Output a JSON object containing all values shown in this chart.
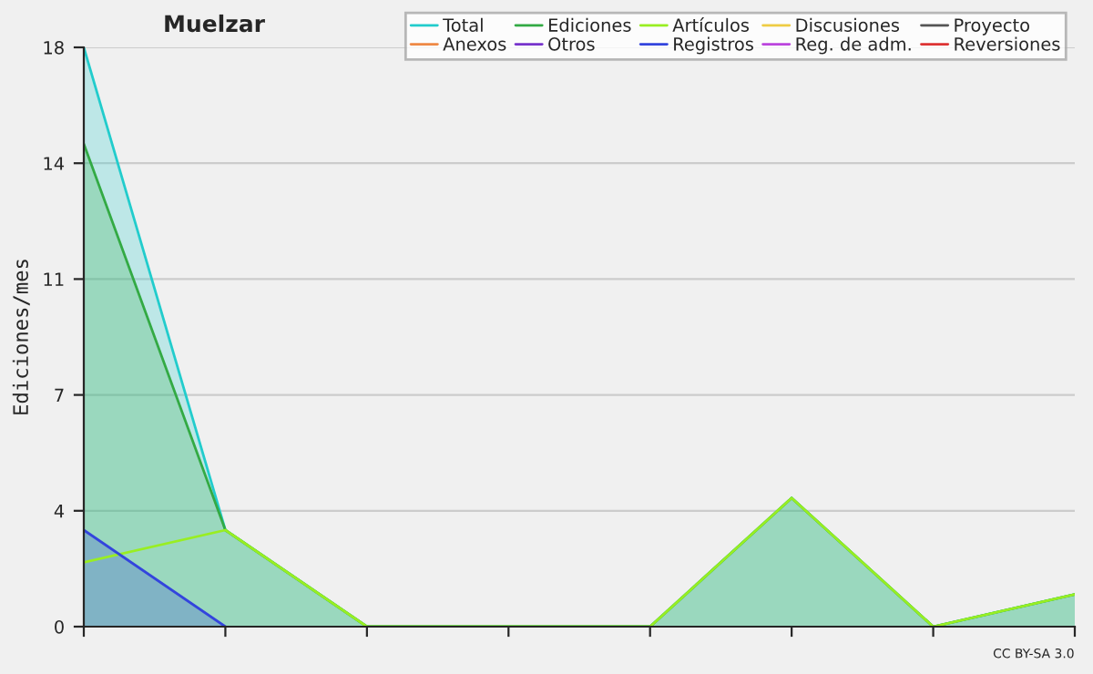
{
  "chart_data": {
    "type": "area",
    "title": "Muelzar",
    "ylabel": "Ediciones/mes",
    "categories": [
      null,
      null,
      null,
      null,
      null,
      null,
      null,
      null
    ],
    "series": [
      {
        "name": "Total",
        "color": "#22cccc",
        "values": [
          18,
          3,
          0,
          0,
          0,
          4,
          0,
          1
        ]
      },
      {
        "name": "Ediciones",
        "color": "#33aa44",
        "values": [
          15,
          3,
          0,
          0,
          0,
          4,
          0,
          1
        ]
      },
      {
        "name": "Artículos",
        "color": "#99ee22",
        "type": "line",
        "values": [
          2,
          3,
          0,
          0,
          0,
          4,
          0,
          1
        ]
      },
      {
        "name": "Discusiones",
        "color": "#eecc44",
        "type": "line",
        "values": [
          null,
          null,
          null,
          null,
          null,
          null,
          null,
          null
        ]
      },
      {
        "name": "Proyecto",
        "color": "#555555",
        "type": "line",
        "values": [
          null,
          null,
          null,
          null,
          null,
          null,
          null,
          null
        ]
      },
      {
        "name": "Anexos",
        "color": "#ee8844",
        "type": "line",
        "values": [
          null,
          null,
          null,
          null,
          null,
          null,
          null,
          null
        ]
      },
      {
        "name": "Otros",
        "color": "#7733cc",
        "type": "line",
        "values": [
          null,
          null,
          null,
          null,
          null,
          null,
          null,
          null
        ]
      },
      {
        "name": "Registros",
        "color": "#3344dd",
        "values": [
          3,
          0,
          null,
          null,
          null,
          null,
          null,
          null
        ]
      },
      {
        "name": "Reg. de adm.",
        "color": "#bb44dd",
        "type": "line",
        "values": [
          null,
          null,
          null,
          null,
          null,
          null,
          null,
          null
        ]
      },
      {
        "name": "Reversiones",
        "color": "#dd3333",
        "type": "line",
        "values": [
          null,
          null,
          null,
          null,
          null,
          null,
          null,
          null
        ]
      }
    ],
    "ylim": [
      0,
      18
    ],
    "yticks": [
      0,
      {
        "value": 3.6,
        "label": "4"
      },
      {
        "value": 7.2,
        "label": "7"
      },
      {
        "value": 10.8,
        "label": "11"
      },
      {
        "value": 14.4,
        "label": "14"
      },
      18
    ],
    "grid": "y",
    "legend": "top right",
    "annotations": [
      "CC BY-SA 3.0"
    ]
  }
}
